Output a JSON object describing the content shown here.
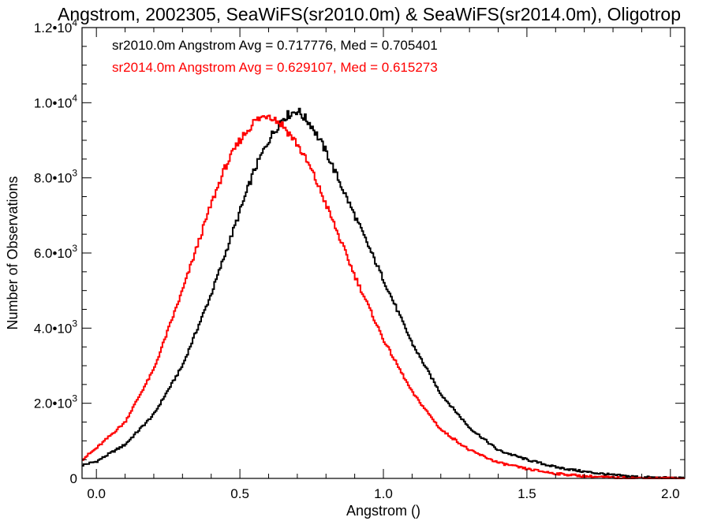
{
  "chart_data": {
    "type": "line",
    "title": "Angstrom, 2002305, SeaWiFS(sr2010.0m) & SeaWiFS(sr2014.0m), Oligotrop",
    "xlabel": "Angstrom ()",
    "ylabel": "Number of Observations",
    "xlim": [
      -0.05,
      2.05
    ],
    "ylim": [
      0,
      12000
    ],
    "x_ticks": [
      {
        "value": 0.0,
        "label": "0.0"
      },
      {
        "value": 0.5,
        "label": "0.5"
      },
      {
        "value": 1.0,
        "label": "1.0"
      },
      {
        "value": 1.5,
        "label": "1.5"
      },
      {
        "value": 2.0,
        "label": "2.0"
      }
    ],
    "y_ticks": [
      {
        "value": 0,
        "mant": "0",
        "exp": ""
      },
      {
        "value": 2000,
        "mant": "2.0•10",
        "exp": "3"
      },
      {
        "value": 4000,
        "mant": "4.0•10",
        "exp": "3"
      },
      {
        "value": 6000,
        "mant": "6.0•10",
        "exp": "3"
      },
      {
        "value": 8000,
        "mant": "8.0•10",
        "exp": "3"
      },
      {
        "value": 10000,
        "mant": "1.0•10",
        "exp": "4"
      },
      {
        "value": 12000,
        "mant": "1.2•10",
        "exp": "4"
      }
    ],
    "grid": false,
    "legend_position": "top-left",
    "series": [
      {
        "name": "sr2010.0m Angstrom Avg = 0.717776, Med = 0.705401",
        "color": "#000000",
        "step": "histogram",
        "x": [
          -0.05,
          0.0,
          0.1,
          0.2,
          0.3,
          0.4,
          0.5,
          0.55,
          0.6,
          0.65,
          0.7,
          0.75,
          0.8,
          0.9,
          1.0,
          1.1,
          1.2,
          1.3,
          1.4,
          1.5,
          1.6,
          1.7,
          1.8,
          1.9,
          2.0,
          2.05
        ],
        "values": [
          350,
          450,
          900,
          1700,
          3000,
          4900,
          7100,
          8200,
          9000,
          9600,
          9800,
          9400,
          8700,
          7000,
          5300,
          3600,
          2250,
          1350,
          750,
          500,
          300,
          180,
          90,
          30,
          10,
          0
        ]
      },
      {
        "name": "sr2014.0m Angstrom Avg = 0.629107, Med = 0.615273",
        "color": "#ff0000",
        "step": "histogram",
        "x": [
          -0.05,
          0.0,
          0.1,
          0.2,
          0.3,
          0.4,
          0.45,
          0.5,
          0.55,
          0.6,
          0.65,
          0.7,
          0.75,
          0.8,
          0.9,
          1.0,
          1.1,
          1.2,
          1.3,
          1.4,
          1.5,
          1.6,
          1.7,
          1.8,
          1.9,
          2.0,
          2.05
        ],
        "values": [
          500,
          800,
          1500,
          2900,
          5000,
          7300,
          8300,
          9000,
          9500,
          9700,
          9400,
          8900,
          8200,
          7300,
          5400,
          3700,
          2300,
          1300,
          750,
          420,
          250,
          130,
          60,
          20,
          5,
          0,
          0
        ]
      }
    ]
  }
}
